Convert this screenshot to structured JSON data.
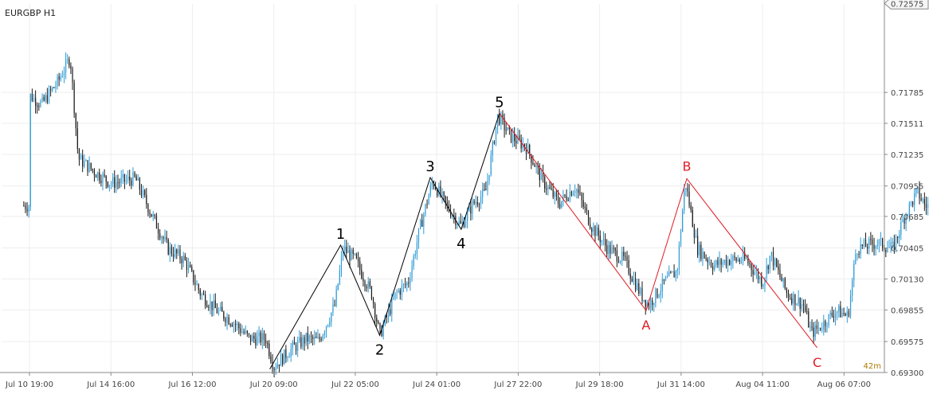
{
  "window": {
    "symbol_label": "EURGBP H1",
    "timer_label": "42m"
  },
  "colors": {
    "background": "#ffffff",
    "grid": "#eeeeee",
    "axis": "#888888",
    "axis_text": "#444444",
    "bull_candle": "#2e9bd6",
    "bear_candle": "#1a1a1a",
    "impulse_line": "#000000",
    "correction_line": "#e01c24",
    "price_tag_bg": "#f5f5f5",
    "timer_text": "#b07a00"
  },
  "chart_data": {
    "type": "candlestick",
    "title": "EURGBP H1",
    "xlabel": "",
    "ylabel": "",
    "ylim": [
      0.693,
      0.7257
    ],
    "grid": true,
    "y_ticks": [
      "0.72575",
      "0.71785",
      "0.71511",
      "0.71235",
      "0.70955",
      "0.70685",
      "0.70405",
      "0.70130",
      "0.69855",
      "0.69575",
      "0.69300"
    ],
    "x_ticks": [
      "Jul 10 19:00",
      "Jul 14 16:00",
      "Jul 16 12:00",
      "Jul 20 09:00",
      "Jul 22 05:00",
      "Jul 24 01:00",
      "Jul 27 22:00",
      "Jul 29 18:00",
      "Jul 31 14:00",
      "Aug 04 11:00",
      "Aug 06 07:00"
    ],
    "x_index_count": 11,
    "price_path": [
      [
        0.0,
        0.7176
      ],
      [
        0.15,
        0.7168
      ],
      [
        0.35,
        0.7188
      ],
      [
        0.5,
        0.721
      ],
      [
        0.6,
        0.712
      ],
      [
        0.8,
        0.7108
      ],
      [
        1.0,
        0.7098
      ],
      [
        1.3,
        0.7102
      ],
      [
        1.5,
        0.707
      ],
      [
        1.7,
        0.704
      ],
      [
        1.9,
        0.703
      ],
      [
        2.1,
        0.7
      ],
      [
        2.3,
        0.6985
      ],
      [
        2.5,
        0.6975
      ],
      [
        2.7,
        0.696
      ],
      [
        2.9,
        0.696
      ],
      [
        3.0,
        0.6935
      ],
      [
        3.2,
        0.695
      ],
      [
        3.4,
        0.696
      ],
      [
        3.55,
        0.6958
      ],
      [
        3.75,
        0.699
      ],
      [
        3.85,
        0.704
      ],
      [
        4.0,
        0.703
      ],
      [
        4.2,
        0.7
      ],
      [
        4.3,
        0.6963
      ],
      [
        4.5,
        0.7
      ],
      [
        4.65,
        0.701
      ],
      [
        4.8,
        0.706
      ],
      [
        4.95,
        0.71
      ],
      [
        5.1,
        0.708
      ],
      [
        5.3,
        0.706
      ],
      [
        5.45,
        0.708
      ],
      [
        5.6,
        0.709
      ],
      [
        5.75,
        0.7158
      ],
      [
        5.9,
        0.714
      ],
      [
        6.1,
        0.713
      ],
      [
        6.3,
        0.71
      ],
      [
        6.5,
        0.708
      ],
      [
        6.7,
        0.7095
      ],
      [
        6.9,
        0.706
      ],
      [
        7.1,
        0.704
      ],
      [
        7.3,
        0.703
      ],
      [
        7.5,
        0.7
      ],
      [
        7.6,
        0.699
      ],
      [
        7.8,
        0.701
      ],
      [
        7.95,
        0.702
      ],
      [
        8.05,
        0.71
      ],
      [
        8.2,
        0.704
      ],
      [
        8.4,
        0.7025
      ],
      [
        8.6,
        0.703
      ],
      [
        8.8,
        0.703
      ],
      [
        9.0,
        0.701
      ],
      [
        9.1,
        0.7035
      ],
      [
        9.3,
        0.7
      ],
      [
        9.5,
        0.699
      ],
      [
        9.6,
        0.6965
      ],
      [
        9.7,
        0.697
      ],
      [
        9.9,
        0.6985
      ],
      [
        10.05,
        0.698
      ],
      [
        10.15,
        0.704
      ],
      [
        10.4,
        0.7045
      ],
      [
        10.6,
        0.704
      ],
      [
        10.75,
        0.707
      ],
      [
        10.9,
        0.709
      ],
      [
        11.0,
        0.7078
      ]
    ],
    "wave_labels": {
      "impulse": [
        {
          "name": "1",
          "x": 3.82,
          "y": 0.7043,
          "label_pos": "above"
        },
        {
          "name": "2",
          "x": 4.3,
          "y": 0.6963,
          "label_pos": "below"
        },
        {
          "name": "3",
          "x": 4.92,
          "y": 0.7103,
          "label_pos": "above"
        },
        {
          "name": "4",
          "x": 5.3,
          "y": 0.7057,
          "label_pos": "below"
        },
        {
          "name": "5",
          "x": 5.77,
          "y": 0.716,
          "label_pos": "above"
        }
      ],
      "correction": [
        {
          "name": "A",
          "x": 7.57,
          "y": 0.6985,
          "label_pos": "below"
        },
        {
          "name": "B",
          "x": 8.07,
          "y": 0.7102,
          "label_pos": "above"
        },
        {
          "name": "C",
          "x": 9.67,
          "y": 0.6952,
          "label_pos": "below"
        }
      ],
      "impulse_start": {
        "x": 2.95,
        "y": 0.6933
      }
    }
  }
}
